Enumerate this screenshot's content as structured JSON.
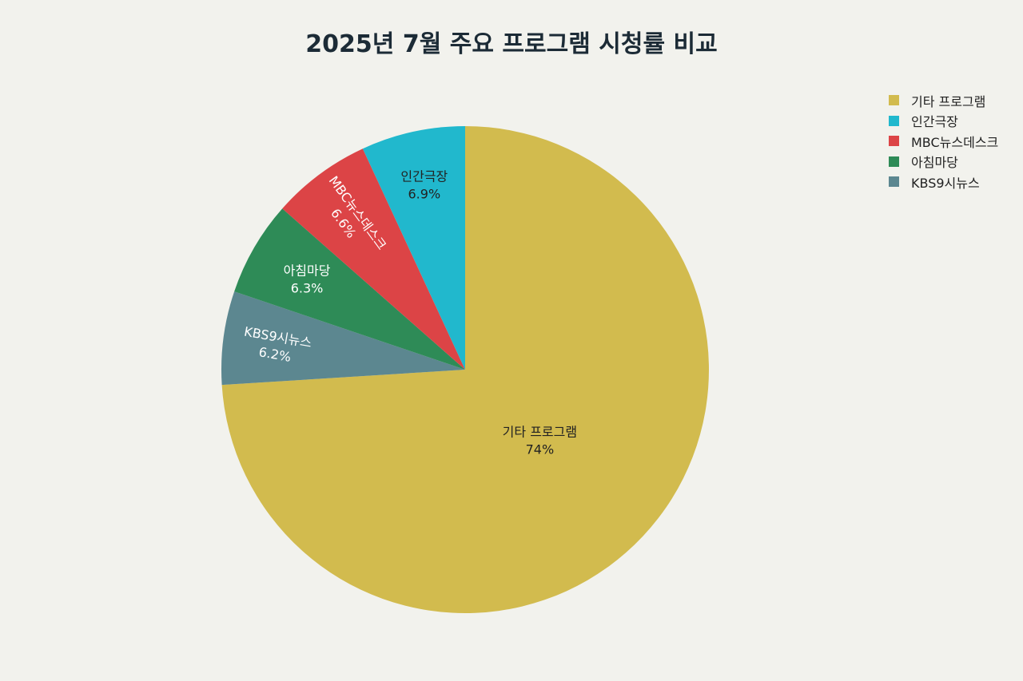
{
  "chart_data": {
    "type": "pie",
    "title": "2025년 7월 주요 프로그램 시청률 비교",
    "slices": [
      {
        "label": "기타 프로그램",
        "value": 74,
        "display": "74%",
        "color": "#d2bb4e",
        "text_color": "#222222"
      },
      {
        "label": "KBS9시뉴스",
        "value": 6.2,
        "display": "6.2%",
        "color": "#5c8790",
        "text_color": "#ffffff"
      },
      {
        "label": "아침마당",
        "value": 6.3,
        "display": "6.3%",
        "color": "#2e8b57",
        "text_color": "#ffffff"
      },
      {
        "label": "MBC뉴스데스크",
        "value": 6.6,
        "display": "6.6%",
        "color": "#dc4446",
        "text_color": "#ffffff"
      },
      {
        "label": "인간극장",
        "value": 6.9,
        "display": "6.9%",
        "color": "#21b8cd",
        "text_color": "#222222"
      }
    ],
    "legend": [
      "기타 프로그램",
      "인간극장",
      "MBC뉴스데스크",
      "아침마당",
      "KBS9시뉴스"
    ],
    "legend_position": "top-right"
  }
}
